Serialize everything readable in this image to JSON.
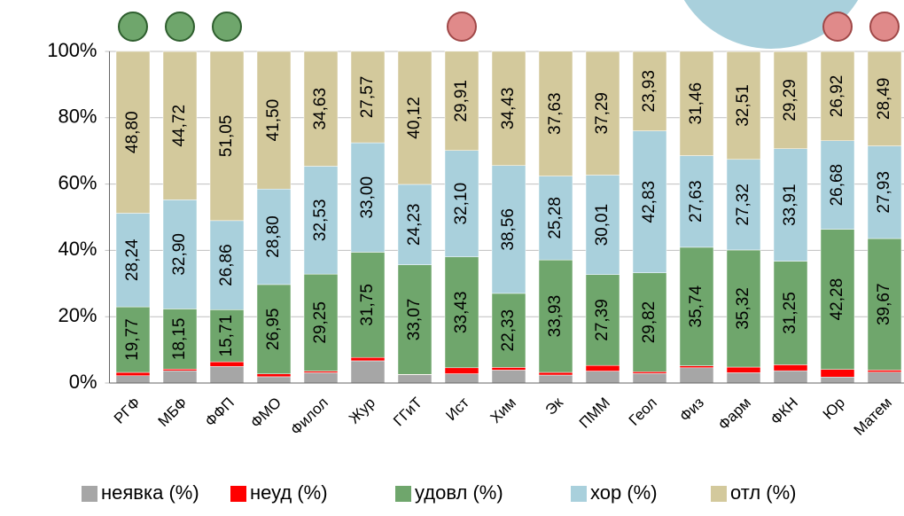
{
  "chart_data": {
    "type": "stacked_bar",
    "categories": [
      "РГФ",
      "МБФ",
      "ФФП",
      "ФМО",
      "Филол",
      "Жур",
      "ГГиТ",
      "Ист",
      "Хим",
      "Эк",
      "ПММ",
      "Геол",
      "Физ",
      "Фарм",
      "ФКН",
      "Юр",
      "Матем"
    ],
    "series": [
      {
        "name": "неявка (%)",
        "color": "#a6a6a6",
        "values": [
          2.2,
          3.7,
          5.0,
          1.9,
          3.1,
          6.7,
          2.5,
          2.8,
          3.9,
          2.4,
          3.6,
          2.9,
          4.6,
          3.1,
          3.7,
          1.8,
          3.3
        ]
      },
      {
        "name": "неуд (%)",
        "color": "#ff0000",
        "values": [
          1.0,
          0.5,
          1.4,
          0.85,
          0.5,
          1.0,
          0.1,
          1.8,
          0.8,
          0.8,
          1.7,
          0.5,
          0.6,
          1.7,
          1.8,
          2.3,
          0.6
        ]
      },
      {
        "name": "удовл (%)",
        "color": "#6fa66c",
        "values": [
          19.77,
          18.15,
          15.71,
          26.95,
          29.25,
          31.75,
          33.07,
          33.43,
          22.33,
          33.93,
          27.39,
          29.82,
          35.74,
          35.32,
          31.25,
          42.28,
          39.67
        ],
        "value_labels": [
          "19,77",
          "18,15",
          "15,71",
          "26,95",
          "29,25",
          "31,75",
          "33,07",
          "33,43",
          "22,33",
          "33,93",
          "27,39",
          "29,82",
          "35,74",
          "35,32",
          "31,25",
          "42,28",
          "39,67"
        ]
      },
      {
        "name": "хор (%)",
        "color": "#a9d0dc",
        "values": [
          28.24,
          32.9,
          26.86,
          28.8,
          32.53,
          33.0,
          24.23,
          32.1,
          38.56,
          25.28,
          30.01,
          42.83,
          27.63,
          27.32,
          33.91,
          26.68,
          27.93
        ],
        "value_labels": [
          "28,24",
          "32,90",
          "26,86",
          "28,80",
          "32,53",
          "33,00",
          "24,23",
          "32,10",
          "38,56",
          "25,28",
          "30,01",
          "42,83",
          "27,63",
          "27,32",
          "33,91",
          "26,68",
          "27,93"
        ]
      },
      {
        "name": "отл (%)",
        "color": "#d3c99c",
        "values": [
          48.8,
          44.72,
          51.05,
          41.5,
          34.63,
          27.57,
          40.12,
          29.91,
          34.43,
          37.63,
          37.29,
          23.93,
          31.46,
          32.51,
          29.29,
          26.92,
          28.49
        ],
        "value_labels": [
          "48,80",
          "44,72",
          "51,05",
          "41,50",
          "34,63",
          "27,57",
          "40,12",
          "29,91",
          "34,43",
          "37,63",
          "37,29",
          "23,93",
          "31,46",
          "32,51",
          "29,29",
          "26,92",
          "28,49"
        ]
      }
    ],
    "ylim": [
      0,
      100
    ],
    "yticks": [
      {
        "value": 0,
        "label": "0%"
      },
      {
        "value": 20,
        "label": "20%"
      },
      {
        "value": 40,
        "label": "40%"
      },
      {
        "value": 60,
        "label": "60%"
      },
      {
        "value": 80,
        "label": "80%"
      },
      {
        "value": 100,
        "label": "100%"
      }
    ],
    "grid": true
  }
}
